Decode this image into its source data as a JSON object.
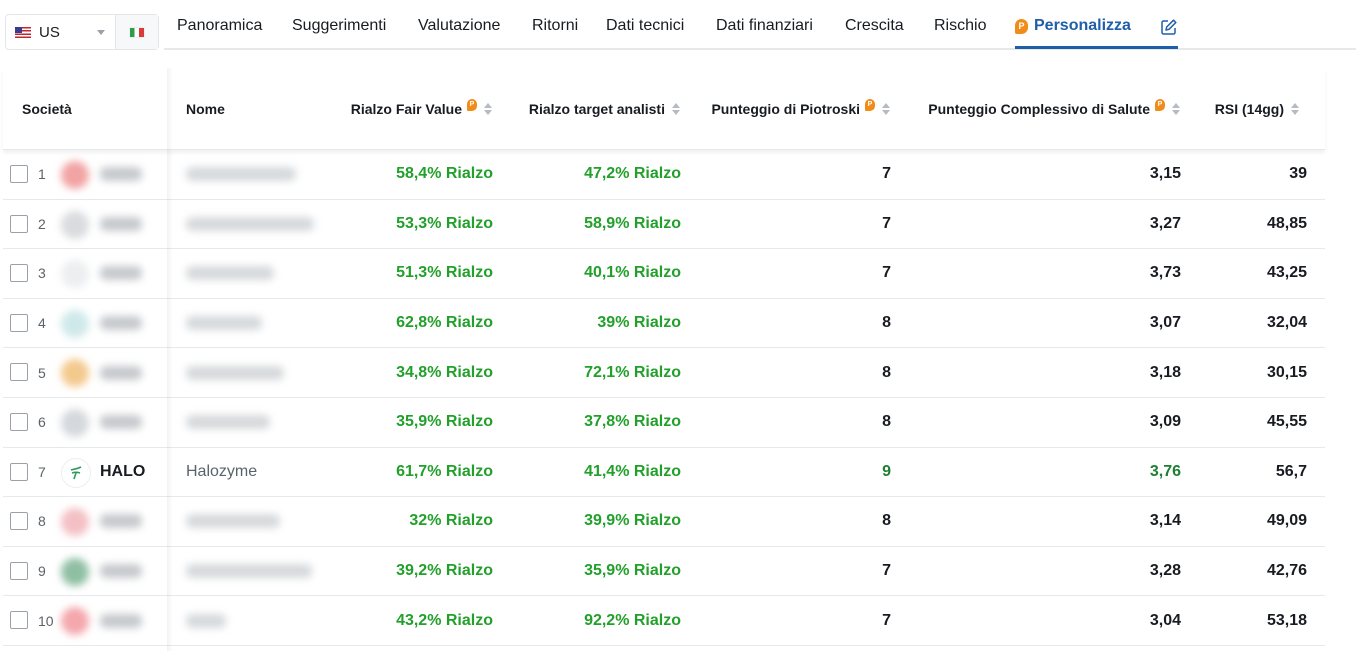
{
  "country": {
    "selected": "US"
  },
  "tabs": [
    {
      "label": "Panoramica"
    },
    {
      "label": "Suggerimenti"
    },
    {
      "label": "Valutazione"
    },
    {
      "label": "Ritorni"
    },
    {
      "label": "Dati tecnici"
    },
    {
      "label": "Dati finanziari"
    },
    {
      "label": "Crescita"
    },
    {
      "label": "Rischio"
    },
    {
      "label": "Personalizza"
    }
  ],
  "table": {
    "columns": {
      "societa": "Società",
      "nome": "Nome",
      "fair_value": "Rialzo Fair Value",
      "target": "Rialzo target analisti",
      "piotroski": "Punteggio di Piotroski",
      "health": "Punteggio Complessivo di Salute",
      "rsi": "RSI (14gg)"
    },
    "rows": [
      {
        "n": "1",
        "ticker": "",
        "name": "",
        "fv": "58,4% Rialzo",
        "ta": "47,2% Rialzo",
        "pio": "7",
        "hs": "3,15",
        "rsi": "39"
      },
      {
        "n": "2",
        "ticker": "",
        "name": "",
        "fv": "53,3% Rialzo",
        "ta": "58,9% Rialzo",
        "pio": "7",
        "hs": "3,27",
        "rsi": "48,85"
      },
      {
        "n": "3",
        "ticker": "",
        "name": "",
        "fv": "51,3% Rialzo",
        "ta": "40,1% Rialzo",
        "pio": "7",
        "hs": "3,73",
        "rsi": "43,25"
      },
      {
        "n": "4",
        "ticker": "",
        "name": "",
        "fv": "62,8% Rialzo",
        "ta": "39% Rialzo",
        "pio": "8",
        "hs": "3,07",
        "rsi": "32,04"
      },
      {
        "n": "5",
        "ticker": "",
        "name": "",
        "fv": "34,8% Rialzo",
        "ta": "72,1% Rialzo",
        "pio": "8",
        "hs": "3,18",
        "rsi": "30,15"
      },
      {
        "n": "6",
        "ticker": "",
        "name": "",
        "fv": "35,9% Rialzo",
        "ta": "37,8% Rialzo",
        "pio": "8",
        "hs": "3,09",
        "rsi": "45,55"
      },
      {
        "n": "7",
        "ticker": "HALO",
        "name": "Halozyme",
        "fv": "61,7% Rialzo",
        "ta": "41,4% Rialzo",
        "pio": "9",
        "hs": "3,76",
        "rsi": "56,7"
      },
      {
        "n": "8",
        "ticker": "",
        "name": "",
        "fv": "32% Rialzo",
        "ta": "39,9% Rialzo",
        "pio": "8",
        "hs": "3,14",
        "rsi": "49,09"
      },
      {
        "n": "9",
        "ticker": "",
        "name": "",
        "fv": "39,2% Rialzo",
        "ta": "35,9% Rialzo",
        "pio": "7",
        "hs": "3,28",
        "rsi": "42,76"
      },
      {
        "n": "10",
        "ticker": "",
        "name": "",
        "fv": "43,2% Rialzo",
        "ta": "92,2% Rialzo",
        "pio": "7",
        "hs": "3,04",
        "rsi": "53,18"
      }
    ]
  },
  "colors": {
    "accent": "#1f5fa8",
    "positive": "#22a02b",
    "pro_badge": "#f28c18"
  }
}
